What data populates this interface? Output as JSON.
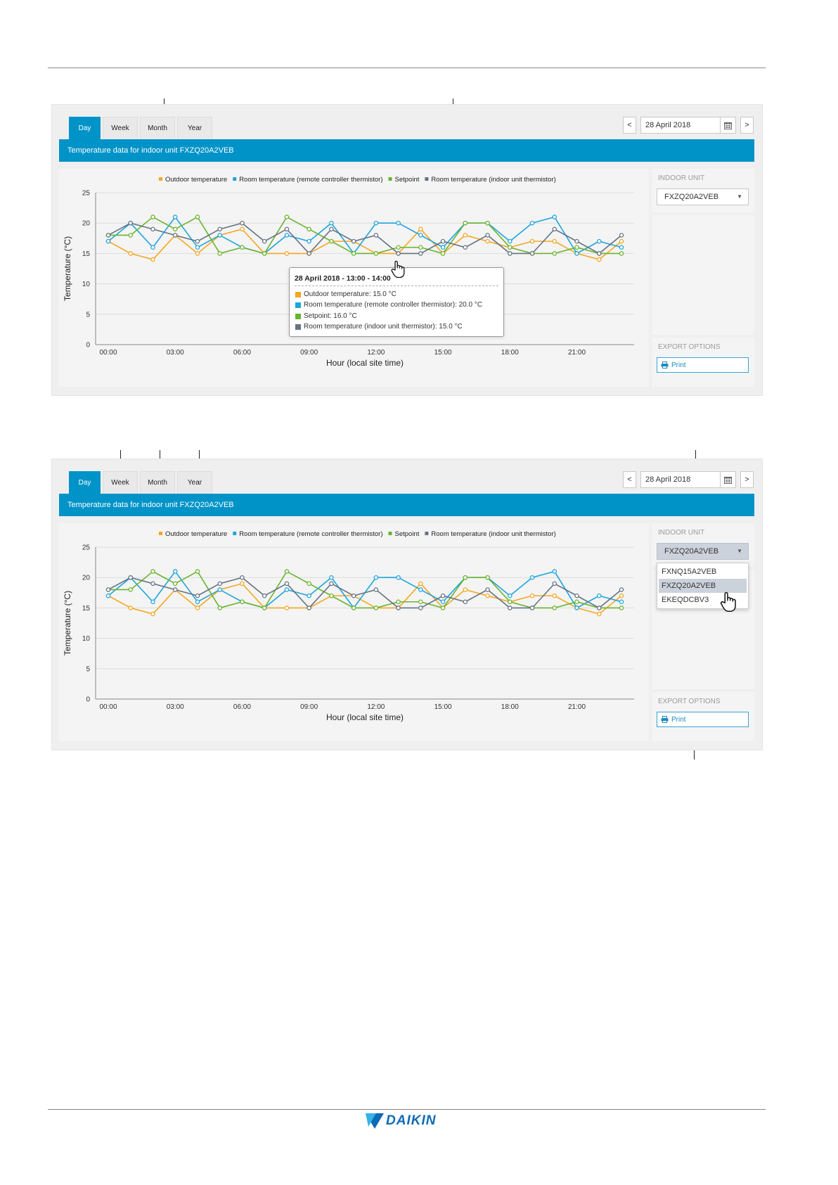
{
  "panels": [
    {
      "tabs": [
        "Day",
        "Week",
        "Month",
        "Year"
      ],
      "active_tab": "Day",
      "date_prev": "<",
      "date_next": ">",
      "date": "28 April 2018",
      "banner": "Temperature data for indoor unit FXZQ20A2VEB",
      "indoor_unit_title": "INDOOR UNIT",
      "indoor_unit_value": "FXZQ20A2VEB",
      "export_title": "EXPORT OPTIONS",
      "print_label": "Print"
    },
    {
      "tabs": [
        "Day",
        "Week",
        "Month",
        "Year"
      ],
      "active_tab": "Day",
      "date_prev": "<",
      "date_next": ">",
      "date": "28 April 2018",
      "banner": "Temperature data for indoor unit FXZQ20A2VEB",
      "indoor_unit_title": "INDOOR UNIT",
      "indoor_unit_value": "FXZQ20A2VEB",
      "export_title": "EXPORT OPTIONS",
      "print_label": "Print",
      "dropdown_options": [
        "FXNQ15A2VEB",
        "FXZQ20A2VEB",
        "EKEQDCBV3"
      ],
      "dropdown_selected": "FXZQ20A2VEB"
    }
  ],
  "tooltip": {
    "title": "28 April 2018 - 13:00 - 14:00",
    "lines": [
      "Outdoor temperature: 15.0 °C",
      "Room temperature (remote controller thermistor): 20.0 °C",
      "Setpoint: 16.0 °C",
      "Room temperature (indoor unit thermistor): 15.0 °C"
    ]
  },
  "logo": "DAIKIN",
  "chart_data": [
    {
      "type": "line",
      "title": "",
      "xlabel": "Hour (local site time)",
      "ylabel": "Temperature (°C)",
      "ylim": [
        0,
        25
      ],
      "yticks": [
        0,
        5,
        10,
        15,
        20,
        25
      ],
      "xticks": [
        "00:00",
        "03:00",
        "06:00",
        "09:00",
        "12:00",
        "15:00",
        "18:00",
        "21:00"
      ],
      "x": [
        0,
        1,
        2,
        3,
        4,
        5,
        6,
        7,
        8,
        9,
        10,
        11,
        12,
        13,
        14,
        15,
        16,
        17,
        18,
        19,
        20,
        21,
        22,
        23
      ],
      "grid": true,
      "legend": "top",
      "series": [
        {
          "name": "Outdoor temperature",
          "color": "#f5a623",
          "values": [
            17,
            15,
            14,
            18,
            15,
            18,
            19,
            15,
            15,
            15,
            17,
            17,
            15,
            15,
            19,
            15,
            18,
            17,
            16,
            17,
            17,
            15,
            14,
            17
          ]
        },
        {
          "name": "Room temperature (remote controller thermistor)",
          "color": "#1ea4dc",
          "values": [
            17,
            20,
            16,
            21,
            16,
            18,
            16,
            15,
            18,
            17,
            20,
            15,
            20,
            20,
            18,
            16,
            20,
            20,
            17,
            20,
            21,
            15,
            17,
            16
          ]
        },
        {
          "name": "Setpoint",
          "color": "#6ab42d",
          "values": [
            18,
            18,
            21,
            19,
            21,
            15,
            16,
            15,
            21,
            19,
            17,
            15,
            15,
            16,
            16,
            15,
            20,
            20,
            16,
            15,
            15,
            16,
            15,
            15
          ]
        },
        {
          "name": "Room temperature (indoor unit thermistor)",
          "color": "#657283",
          "values": [
            18,
            20,
            19,
            18,
            17,
            19,
            20,
            17,
            19,
            15,
            19,
            17,
            18,
            15,
            15,
            17,
            16,
            18,
            15,
            15,
            19,
            17,
            15,
            18
          ]
        }
      ]
    },
    {
      "type": "line",
      "title": "",
      "xlabel": "Hour (local site time)",
      "ylabel": "Temperature (°C)",
      "ylim": [
        0,
        25
      ],
      "yticks": [
        0,
        5,
        10,
        15,
        20,
        25
      ],
      "xticks": [
        "00:00",
        "03:00",
        "06:00",
        "09:00",
        "12:00",
        "15:00",
        "18:00",
        "21:00"
      ],
      "x": [
        0,
        1,
        2,
        3,
        4,
        5,
        6,
        7,
        8,
        9,
        10,
        11,
        12,
        13,
        14,
        15,
        16,
        17,
        18,
        19,
        20,
        21,
        22,
        23
      ],
      "grid": true,
      "legend": "top",
      "series": [
        {
          "name": "Outdoor temperature",
          "color": "#f5a623",
          "values": [
            17,
            15,
            14,
            18,
            15,
            18,
            19,
            15,
            15,
            15,
            17,
            17,
            15,
            15,
            19,
            15,
            18,
            17,
            16,
            17,
            17,
            15,
            14,
            17
          ]
        },
        {
          "name": "Room temperature (remote controller thermistor)",
          "color": "#1ea4dc",
          "values": [
            17,
            20,
            16,
            21,
            16,
            18,
            16,
            15,
            18,
            17,
            20,
            15,
            20,
            20,
            18,
            16,
            20,
            20,
            17,
            20,
            21,
            15,
            17,
            16
          ]
        },
        {
          "name": "Setpoint",
          "color": "#6ab42d",
          "values": [
            18,
            18,
            21,
            19,
            21,
            15,
            16,
            15,
            21,
            19,
            17,
            15,
            15,
            16,
            16,
            15,
            20,
            20,
            16,
            15,
            15,
            16,
            15,
            15
          ]
        },
        {
          "name": "Room temperature (indoor unit thermistor)",
          "color": "#657283",
          "values": [
            18,
            20,
            19,
            18,
            17,
            19,
            20,
            17,
            19,
            15,
            19,
            17,
            18,
            15,
            15,
            17,
            16,
            18,
            15,
            15,
            19,
            17,
            15,
            18
          ]
        }
      ]
    }
  ]
}
